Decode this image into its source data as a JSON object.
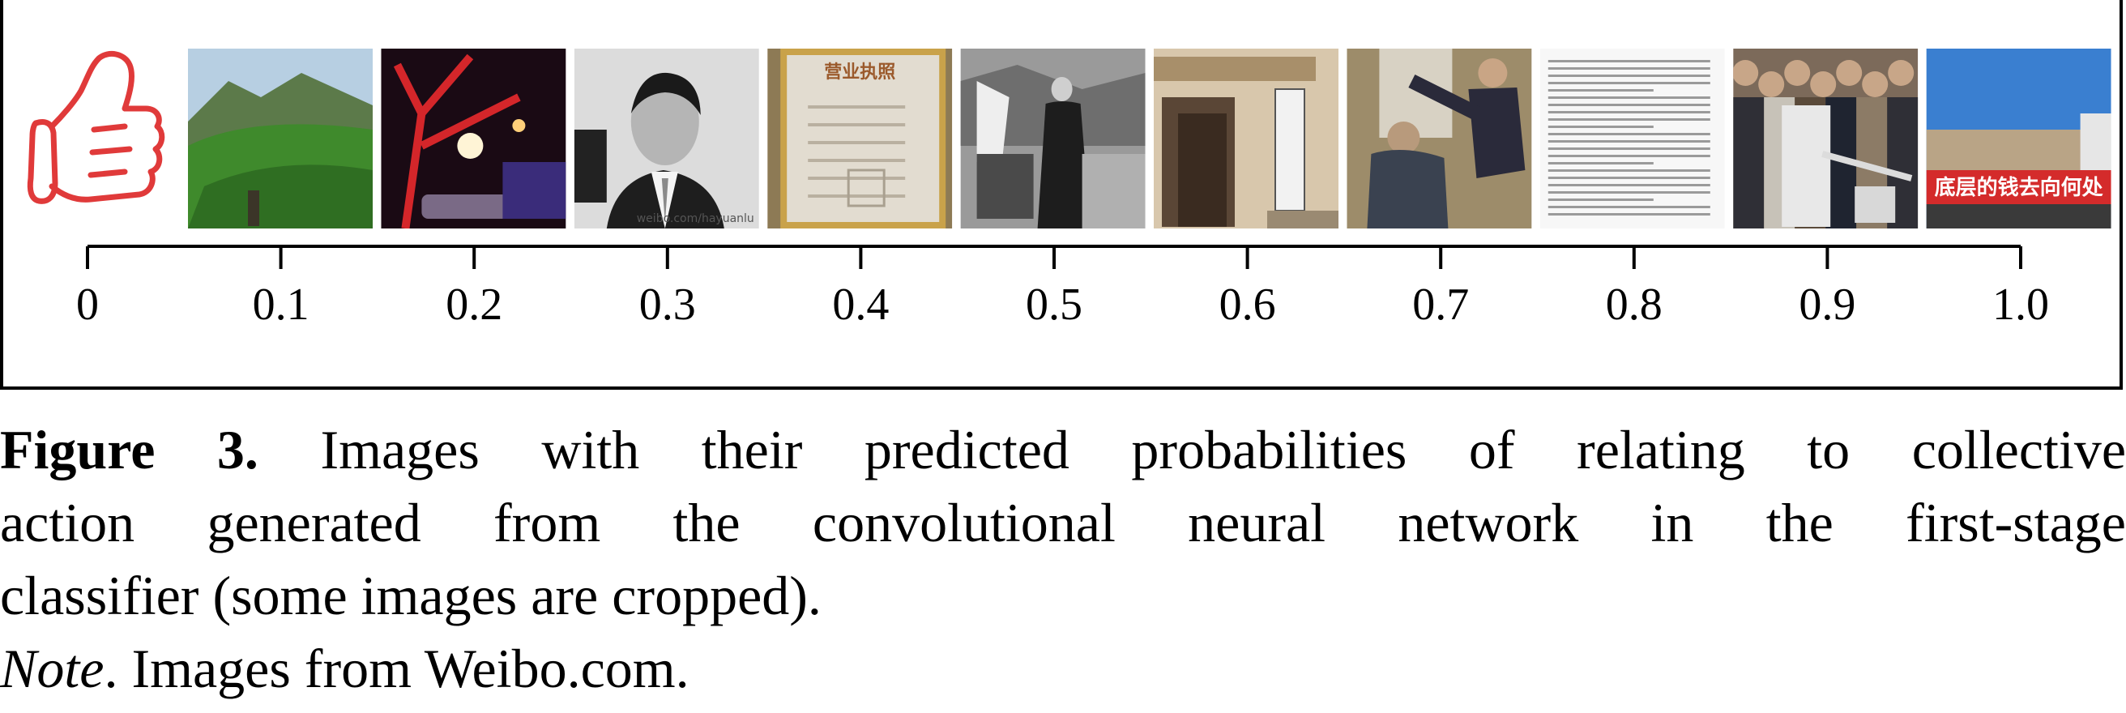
{
  "figure": {
    "axis_ticks": [
      "0",
      "0.1",
      "0.2",
      "0.3",
      "0.4",
      "0.5",
      "0.6",
      "0.7",
      "0.8",
      "0.9",
      "1.0"
    ],
    "thumb_icon": "thumbs-up-icon",
    "images": [
      {
        "scene": "green-mountain-landscape",
        "overlay": "",
        "banner": ""
      },
      {
        "scene": "night-street-red-tree",
        "overlay": "",
        "banner": ""
      },
      {
        "scene": "portrait-man-suit",
        "overlay": "weibo.com/hayuanlu",
        "banner": ""
      },
      {
        "scene": "business-license-document",
        "overlay": "",
        "banner": "营业执照"
      },
      {
        "scene": "black-white-old-photo",
        "overlay": "",
        "banner": ""
      },
      {
        "scene": "building-entrance-sign",
        "overlay": "",
        "banner": ""
      },
      {
        "scene": "fight-scene",
        "overlay": "",
        "banner": ""
      },
      {
        "scene": "text-document-screenshot",
        "overlay": "",
        "banner": ""
      },
      {
        "scene": "crowd-with-cameras",
        "overlay": "",
        "banner": ""
      },
      {
        "scene": "protest-red-banner",
        "overlay": "",
        "banner": "底层的钱去向何处"
      }
    ]
  },
  "caption": {
    "label": "Figure 3.",
    "line1": "Images with their predicted probabilities of relating to collective",
    "line2": "action generated from the convolutional neural network in the first-stage",
    "line3": "classifier (some images are cropped).",
    "note_label": "Note",
    "note_text": ". Images from Weibo.com."
  },
  "colors": {
    "thumb": "#e03a3a",
    "banner_red": "#d42b2b"
  }
}
